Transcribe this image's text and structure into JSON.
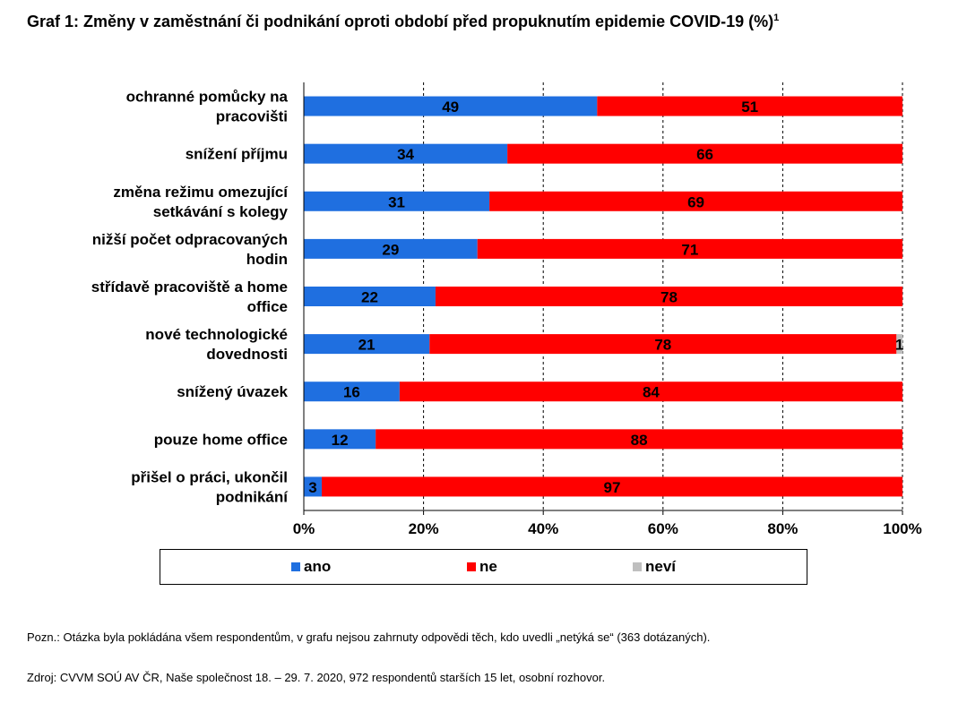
{
  "title": "Graf 1: Změny v zaměstnání či podnikání oproti období před propuknutím epidemie COVID-19 (%)",
  "title_sup": "1",
  "chart_data": {
    "type": "bar",
    "orientation": "horizontal",
    "stacked": "percent",
    "categories": [
      [
        "ochranné pomůcky na",
        "pracovišti"
      ],
      [
        "snížení příjmu"
      ],
      [
        "změna režimu omezující",
        "setkávání s kolegy"
      ],
      [
        "nižší počet odpracovaných",
        "hodin"
      ],
      [
        "střídavě pracoviště a home",
        "office"
      ],
      [
        "nové technologické",
        "dovednosti"
      ],
      [
        "snížený úvazek"
      ],
      [
        "pouze home office"
      ],
      [
        "přišel o práci, ukončil",
        "podnikání"
      ]
    ],
    "series": [
      {
        "name": "ano",
        "color": "#1f6fe0",
        "values": [
          49,
          34,
          31,
          29,
          22,
          21,
          16,
          12,
          3
        ]
      },
      {
        "name": "ne",
        "color": "#ff0000",
        "values": [
          51,
          66,
          69,
          71,
          78,
          78,
          84,
          88,
          97
        ]
      },
      {
        "name": "neví",
        "color": "#bfbfbf",
        "values": [
          0,
          0,
          0,
          0,
          0,
          1,
          0,
          0,
          0
        ]
      }
    ],
    "xlim": [
      0,
      100
    ],
    "x_ticks": [
      "0%",
      "20%",
      "40%",
      "60%",
      "80%",
      "100%"
    ],
    "grid": "vertical dashed",
    "legend_position": "bottom"
  },
  "note": "Pozn.: Otázka byla pokládána všem respondentům, v grafu nejsou zahrnuty odpovědi těch, kdo uvedli „netýká se“ (363 dotázaných).",
  "source": "Zdroj: CVVM SOÚ AV ČR, Naše společnost 18. – 29. 7. 2020, 972 respondentů starších 15 let, osobní rozhovor."
}
